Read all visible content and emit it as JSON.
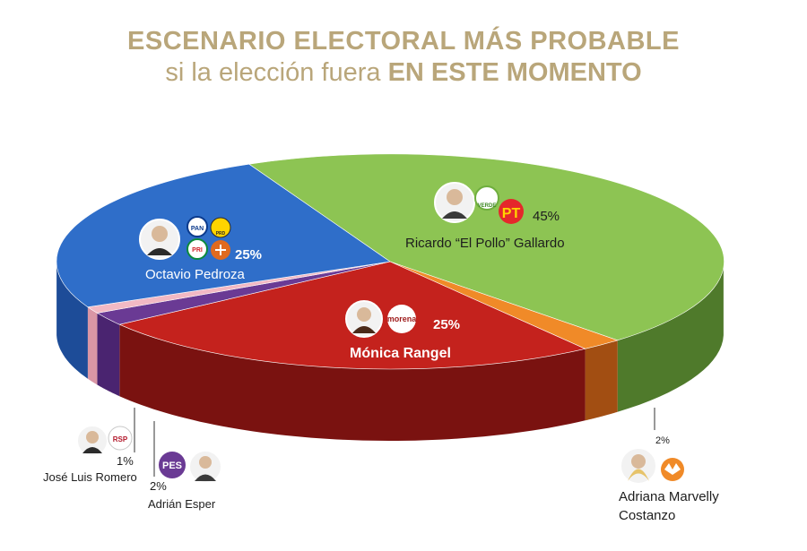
{
  "title": {
    "line1": "ESCENARIO ELECTORAL MÁS PROBABLE",
    "line2_prefix": "si la elección fuera",
    "line2_bold": "EN ESTE MOMENTO"
  },
  "chart_data": {
    "type": "pie",
    "title": "ESCENARIO ELECTORAL MÁS PROBABLE si la elección fuera EN ESTE MOMENTO",
    "series": [
      {
        "name": "Ricardo “El Pollo” Gallardo",
        "value": 45,
        "label": "45%",
        "color": "#8dc453",
        "side_color": "#4f7a2b",
        "parties": [
          "VERDE",
          "PT"
        ]
      },
      {
        "name": "Adriana Marvelly Costanzo",
        "value": 2,
        "label": "2%",
        "color": "#f08a28",
        "side_color": "#a24e12",
        "parties": [
          "MC"
        ]
      },
      {
        "name": "Mónica Rangel",
        "value": 25,
        "label": "25%",
        "color": "#c4221d",
        "side_color": "#7a1210",
        "parties": [
          "morena"
        ]
      },
      {
        "name": "Adrián Esper",
        "value": 2,
        "label": "2%",
        "color": "#6a3a94",
        "side_color": "#4a2470",
        "parties": [
          "PES"
        ]
      },
      {
        "name": "José Luis Romero",
        "value": 1,
        "label": "1%",
        "color": "#f2b9c4",
        "side_color": "#d996a5",
        "parties": [
          "RSP"
        ]
      },
      {
        "name": "Octavio Pedroza",
        "value": 25,
        "label": "25%",
        "color": "#2f6ec9",
        "side_color": "#1d4c98",
        "parties": [
          "PAN",
          "PRD",
          "PRI",
          "CP"
        ]
      }
    ]
  },
  "party_logos": {
    "verde": "VERDE",
    "pt": "PT",
    "pan": "PAN",
    "prd": "PRD",
    "pri": "PRI",
    "morena": "morena",
    "pes": "PES",
    "rsp": "RSP"
  }
}
